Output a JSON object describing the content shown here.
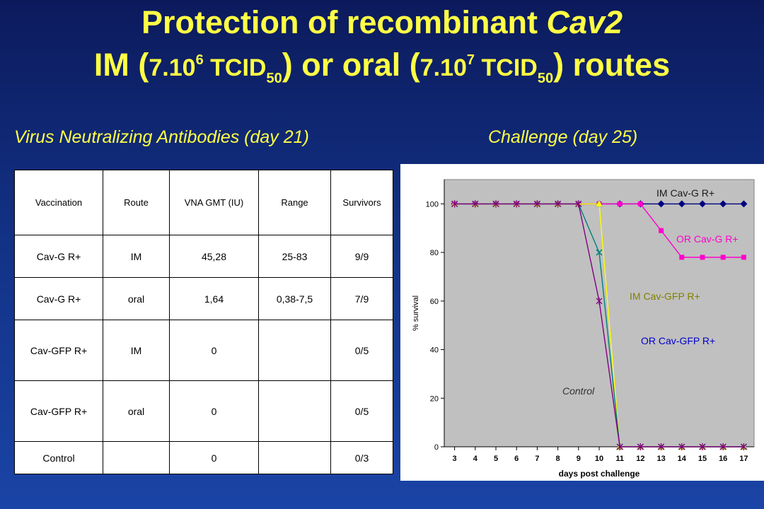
{
  "slide": {
    "title_line1_prefix": "Protection of recombinant ",
    "title_line1_italic": "Cav2",
    "title_line2": {
      "p1": "IM (",
      "n1": "7.10",
      "e1": "6",
      "u1": " TCID",
      "s1": "50",
      "p2": ") or oral (",
      "n2": "7.10",
      "e2": "7",
      "u2": " TCID",
      "s2": "50",
      "p3": ") routes"
    },
    "left_heading": "Virus Neutralizing Antibodies (day 21)",
    "right_heading": "Challenge (day 25)"
  },
  "table": {
    "headers": [
      "Vaccination",
      "Route",
      "VNA GMT (IU)",
      "Range",
      "Survivors"
    ],
    "rows": [
      [
        "Cav-G R+",
        "IM",
        "45,28",
        "25-83",
        "9/9"
      ],
      [
        "Cav-G R+",
        "oral",
        "1,64",
        "0,38-7,5",
        "7/9"
      ],
      [
        "Cav-GFP R+",
        "IM",
        "0",
        "",
        "0/5"
      ],
      [
        "Cav-GFP R+",
        "oral",
        "0",
        "",
        "0/5"
      ],
      [
        "Control",
        "",
        "0",
        "",
        "0/3"
      ]
    ]
  },
  "chart_data": {
    "type": "line",
    "xlabel": "days post challenge",
    "ylabel": "% survival",
    "x_ticks": [
      3,
      4,
      5,
      6,
      7,
      8,
      9,
      10,
      11,
      12,
      13,
      14,
      15,
      16,
      17
    ],
    "y_ticks": [
      0,
      20,
      40,
      60,
      80,
      100
    ],
    "xlim": [
      2.5,
      17.5
    ],
    "ylim": [
      0,
      110
    ],
    "grid": false,
    "plot_background": "#c0c0c0",
    "series": [
      {
        "name": "IM Cav-G R+",
        "color": "#000080",
        "marker": "diamond",
        "label_color": "#1a1a1a",
        "x": [
          3,
          4,
          5,
          6,
          7,
          8,
          9,
          10,
          11,
          12,
          13,
          14,
          15,
          16,
          17
        ],
        "y": [
          100,
          100,
          100,
          100,
          100,
          100,
          100,
          100,
          100,
          100,
          100,
          100,
          100,
          100,
          100
        ]
      },
      {
        "name": "OR Cav-G R+",
        "color": "#ff00cc",
        "marker": "square",
        "label_color": "#ff00cc",
        "x": [
          3,
          4,
          5,
          6,
          7,
          8,
          9,
          10,
          11,
          12,
          13,
          14,
          15,
          16,
          17
        ],
        "y": [
          100,
          100,
          100,
          100,
          100,
          100,
          100,
          100,
          100,
          100,
          89,
          78,
          78,
          78,
          78
        ]
      },
      {
        "name": "IM Cav-GFP R+",
        "color": "#ffff00",
        "marker": "triangle",
        "label_color": "#808000",
        "x": [
          3,
          4,
          5,
          6,
          7,
          8,
          9,
          10,
          11,
          12,
          13,
          14,
          15,
          16,
          17
        ],
        "y": [
          100,
          100,
          100,
          100,
          100,
          100,
          100,
          100,
          0,
          0,
          0,
          0,
          0,
          0,
          0
        ]
      },
      {
        "name": "OR Cav-GFP R+",
        "color": "#008080",
        "marker": "x",
        "label_color": "#0000cc",
        "x": [
          3,
          4,
          5,
          6,
          7,
          8,
          9,
          10,
          11,
          12,
          13,
          14,
          15,
          16,
          17
        ],
        "y": [
          100,
          100,
          100,
          100,
          100,
          100,
          100,
          80,
          0,
          0,
          0,
          0,
          0,
          0,
          0
        ]
      },
      {
        "name": "Control",
        "color": "#800080",
        "marker": "star",
        "label_color": "#333333",
        "x": [
          3,
          4,
          5,
          6,
          7,
          8,
          9,
          10,
          11,
          12,
          13,
          14,
          15,
          16,
          17
        ],
        "y": [
          100,
          100,
          100,
          100,
          100,
          100,
          100,
          60,
          0,
          0,
          0,
          0,
          0,
          0,
          0
        ]
      }
    ]
  }
}
